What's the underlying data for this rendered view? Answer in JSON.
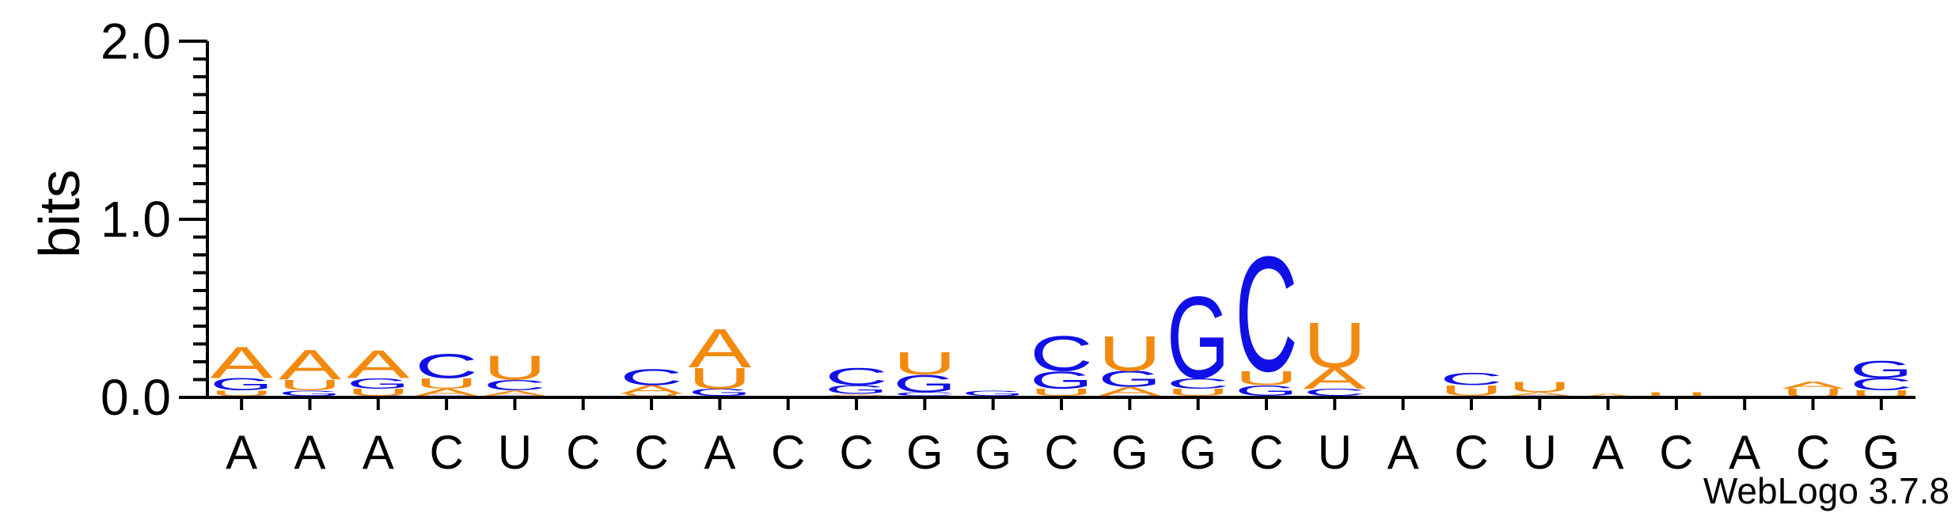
{
  "chart_data": {
    "type": "sequence_logo",
    "ylabel": "bits",
    "ylim": [
      0,
      2.0
    ],
    "yticks": [
      "0.0",
      "1.0",
      "2.0"
    ],
    "colors": {
      "A": "#f28a10",
      "U": "#f28a10",
      "C": "#1010e6",
      "G": "#1010e6"
    },
    "positions": [
      {
        "label": "A",
        "stack": [
          [
            "C",
            0.01
          ],
          [
            "U",
            0.03
          ],
          [
            "G",
            0.07
          ],
          [
            "A",
            0.18
          ]
        ]
      },
      {
        "label": "A",
        "stack": [
          [
            "C",
            0.01
          ],
          [
            "G",
            0.03
          ],
          [
            "U",
            0.06
          ],
          [
            "A",
            0.17
          ]
        ]
      },
      {
        "label": "A",
        "stack": [
          [
            "C",
            0.01
          ],
          [
            "U",
            0.04
          ],
          [
            "G",
            0.06
          ],
          [
            "A",
            0.16
          ]
        ]
      },
      {
        "label": "C",
        "stack": [
          [
            "G",
            0.01
          ],
          [
            "A",
            0.04
          ],
          [
            "U",
            0.06
          ],
          [
            "C",
            0.14
          ]
        ]
      },
      {
        "label": "U",
        "stack": [
          [
            "G",
            0.01
          ],
          [
            "A",
            0.03
          ],
          [
            "C",
            0.06
          ],
          [
            "U",
            0.14
          ]
        ]
      },
      {
        "label": "C",
        "stack": []
      },
      {
        "label": "C",
        "stack": [
          [
            "G",
            0.01
          ],
          [
            "U",
            0.01
          ],
          [
            "A",
            0.05
          ],
          [
            "C",
            0.09
          ]
        ]
      },
      {
        "label": "A",
        "stack": [
          [
            "C",
            0.01
          ],
          [
            "G",
            0.04
          ],
          [
            "U",
            0.12
          ],
          [
            "A",
            0.22
          ]
        ]
      },
      {
        "label": "C",
        "stack": []
      },
      {
        "label": "C",
        "stack": [
          [
            "U",
            0.01
          ],
          [
            "A",
            0.01
          ],
          [
            "G",
            0.05
          ],
          [
            "C",
            0.1
          ]
        ]
      },
      {
        "label": "G",
        "stack": [
          [
            "A",
            0.01
          ],
          [
            "C",
            0.02
          ],
          [
            "G",
            0.1
          ],
          [
            "U",
            0.13
          ]
        ]
      },
      {
        "label": "G",
        "stack": [
          [
            "C",
            0.01
          ],
          [
            "G",
            0.03
          ]
        ]
      },
      {
        "label": "C",
        "stack": [
          [
            "A",
            0.01
          ],
          [
            "U",
            0.04
          ],
          [
            "G",
            0.1
          ],
          [
            "C",
            0.2
          ]
        ]
      },
      {
        "label": "G",
        "stack": [
          [
            "C",
            0.01
          ],
          [
            "A",
            0.05
          ],
          [
            "G",
            0.09
          ],
          [
            "U",
            0.2
          ]
        ]
      },
      {
        "label": "G",
        "stack": [
          [
            "A",
            0.01
          ],
          [
            "U",
            0.04
          ],
          [
            "C",
            0.06
          ],
          [
            "G",
            0.47
          ]
        ]
      },
      {
        "label": "C",
        "stack": [
          [
            "A",
            0.01
          ],
          [
            "G",
            0.06
          ],
          [
            "U",
            0.08
          ],
          [
            "C",
            0.66
          ]
        ]
      },
      {
        "label": "U",
        "stack": [
          [
            "G",
            0.01
          ],
          [
            "C",
            0.04
          ],
          [
            "A",
            0.12
          ],
          [
            "U",
            0.26
          ]
        ]
      },
      {
        "label": "A",
        "stack": []
      },
      {
        "label": "C",
        "stack": [
          [
            "A",
            0.01
          ],
          [
            "U",
            0.06
          ],
          [
            "C",
            0.07
          ]
        ]
      },
      {
        "label": "U",
        "stack": [
          [
            "C",
            0.01
          ],
          [
            "A",
            0.02
          ],
          [
            "U",
            0.06
          ]
        ]
      },
      {
        "label": "A",
        "stack": [
          [
            "A",
            0.02
          ]
        ]
      },
      {
        "label": "C",
        "stack": [
          [
            "U",
            0.03
          ]
        ]
      },
      {
        "label": "A",
        "stack": []
      },
      {
        "label": "C",
        "stack": [
          [
            "U",
            0.05
          ],
          [
            "A",
            0.04
          ]
        ]
      },
      {
        "label": "G",
        "stack": [
          [
            "U",
            0.04
          ],
          [
            "C",
            0.07
          ],
          [
            "G",
            0.1
          ]
        ]
      }
    ]
  },
  "footer": {
    "version": "WebLogo 3.7.8"
  }
}
